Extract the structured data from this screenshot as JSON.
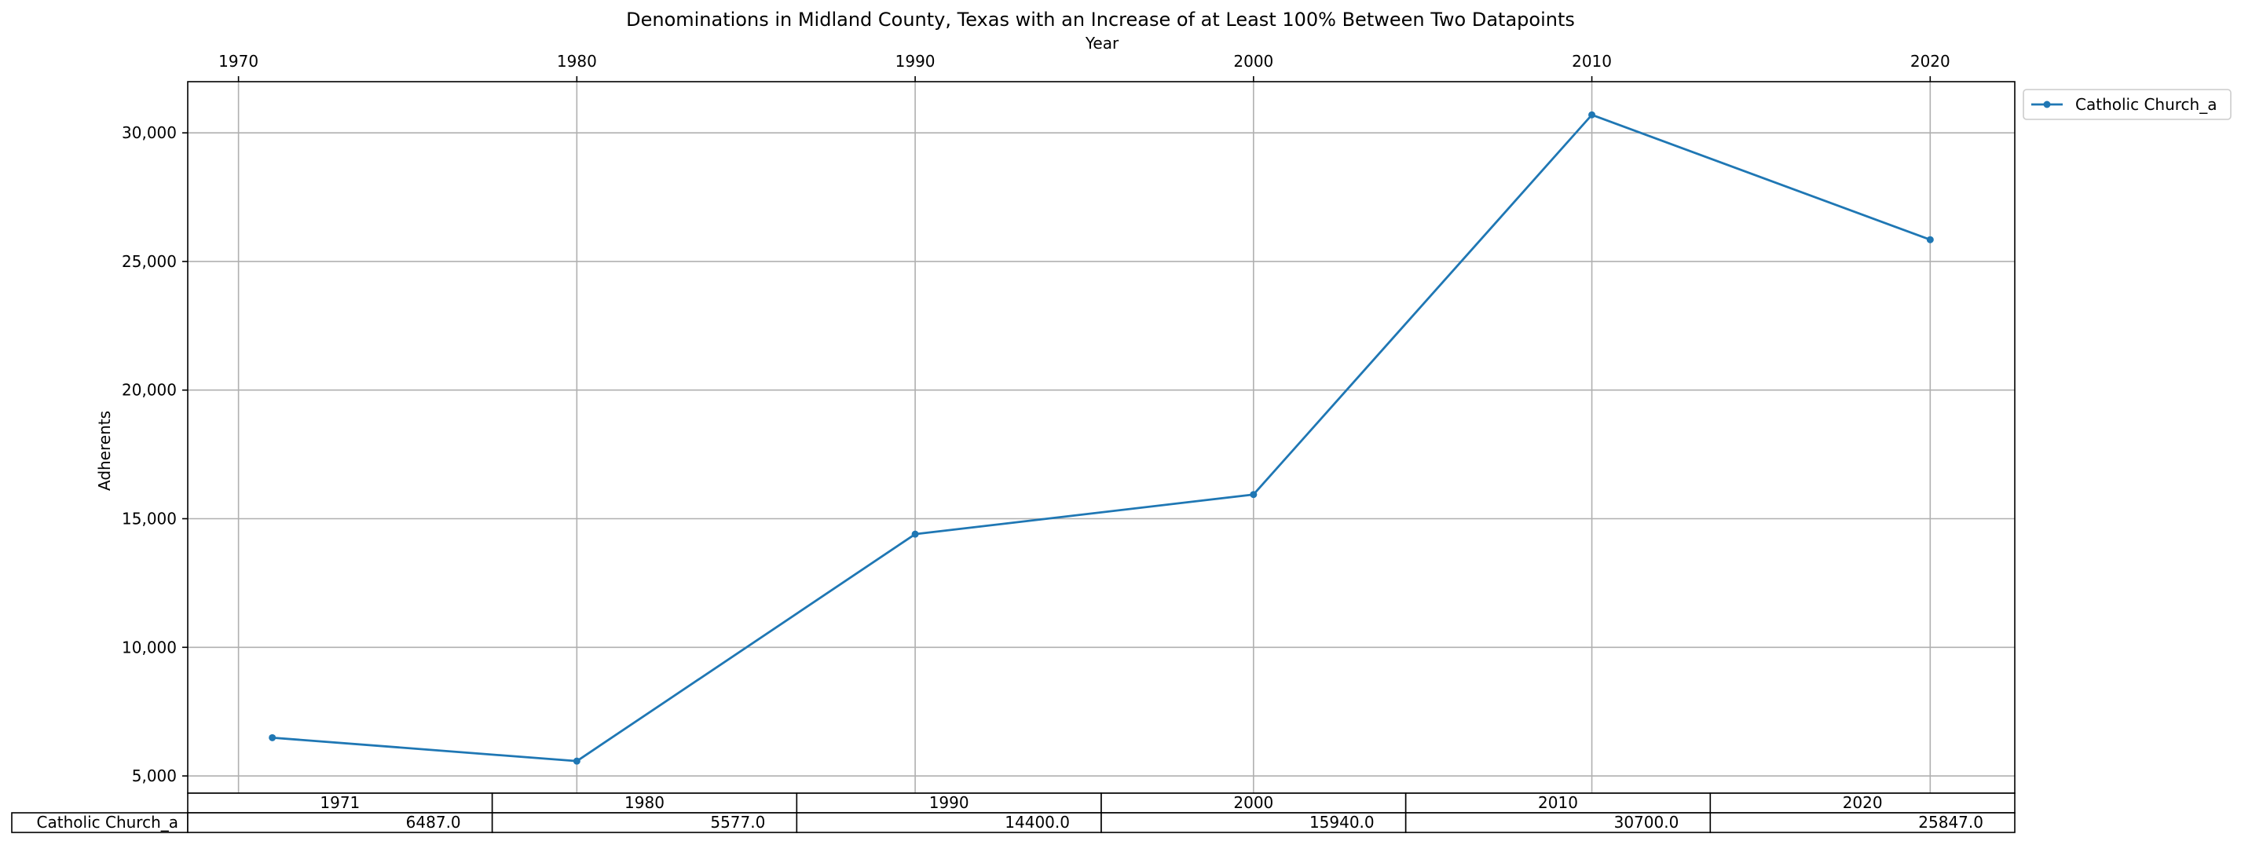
{
  "chart_data": {
    "type": "line",
    "title": "Denominations in Midland County, Texas with an Increase of at Least 100% Between Two Datapoints",
    "xlabel": "Year",
    "ylabel": "Adherents",
    "x_ticks": [
      1970,
      1980,
      1990,
      2000,
      2010,
      2020
    ],
    "x_tick_labels": [
      "1970",
      "1980",
      "1990",
      "2000",
      "2010",
      "2020"
    ],
    "xlim": [
      1968.5,
      2022.5
    ],
    "y_ticks": [
      5000,
      10000,
      15000,
      20000,
      25000,
      30000
    ],
    "y_tick_labels": [
      "5,000",
      "10,000",
      "15,000",
      "20,000",
      "25,000",
      "30,000"
    ],
    "ylim": [
      4330,
      31990
    ],
    "grid": true,
    "legend_position": "outside-top-right",
    "series": [
      {
        "name": "Catholic Church_a",
        "color": "#1f77b4",
        "x": [
          1971,
          1980,
          1990,
          2000,
          2010,
          2020
        ],
        "values": [
          6487.0,
          5577.0,
          14400.0,
          15940.0,
          30700.0,
          25847.0
        ]
      }
    ],
    "table": {
      "col_labels": [
        "1971",
        "1980",
        "1990",
        "2000",
        "2010",
        "2020"
      ],
      "rows": [
        {
          "label": "Catholic Church_a",
          "cells": [
            "6487.0",
            "5577.0",
            "14400.0",
            "15940.0",
            "30700.0",
            "25847.0"
          ]
        }
      ]
    }
  }
}
